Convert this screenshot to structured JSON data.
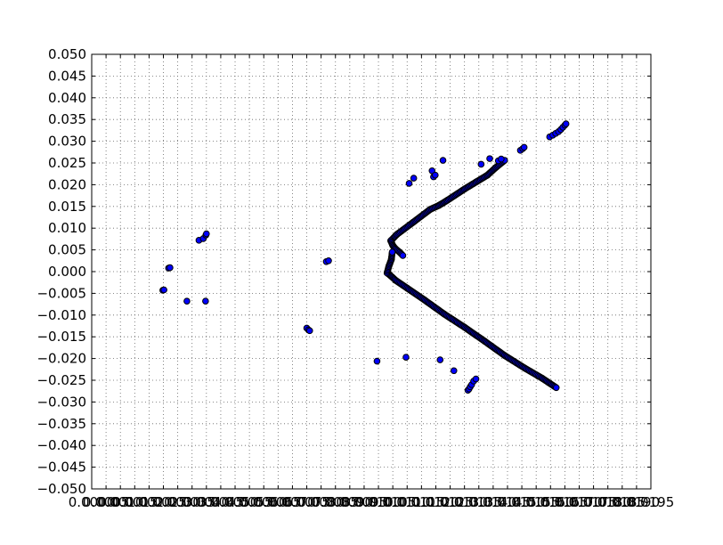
{
  "chart_data": {
    "type": "scatter",
    "title": "",
    "xlabel": "",
    "ylabel": "",
    "xlim": [
      0,
      0.0195
    ],
    "ylim": [
      -0.05,
      0.05
    ],
    "grid": true,
    "xticks": [
      0.0,
      0.0005,
      0.001,
      0.0015,
      0.002,
      0.0025,
      0.003,
      0.0035,
      0.004,
      0.0045,
      0.005,
      0.0055,
      0.006,
      0.0065,
      0.007,
      0.0075,
      0.008,
      0.0085,
      0.009,
      0.0095,
      0.01,
      0.0105,
      0.011,
      0.0115,
      0.012,
      0.0125,
      0.013,
      0.0135,
      0.014,
      0.0145,
      0.015,
      0.0155,
      0.016,
      0.0165,
      0.017,
      0.0175,
      0.018,
      0.0185,
      0.019,
      0.0195
    ],
    "xtick_labels": [
      "0.0000",
      "0.0005",
      "0.0010",
      "0.0015",
      "0.0020",
      "0.0025",
      "0.0030",
      "0.0035",
      "0.0040",
      "0.0045",
      "0.0050",
      "0.0055",
      "0.0060",
      "0.0065",
      "0.0070",
      "0.0075",
      "0.0080",
      "0.0085",
      "0.0090",
      "0.0095",
      "0.0100",
      "0.0105",
      "0.0110",
      "0.0115",
      "0.0120",
      "0.0125",
      "0.0130",
      "0.0135",
      "0.0140",
      "0.0145",
      "0.0150",
      "0.0155",
      "0.0160",
      "0.0165",
      "0.0170",
      "0.0175",
      "0.0180",
      "0.0185",
      "0.0190",
      "0.0195"
    ],
    "yticks": [
      -0.05,
      -0.045,
      -0.04,
      -0.035,
      -0.03,
      -0.025,
      -0.02,
      -0.015,
      -0.01,
      -0.005,
      0.0,
      0.005,
      0.01,
      0.015,
      0.02,
      0.025,
      0.03,
      0.035,
      0.04,
      0.045,
      0.05
    ],
    "ytick_labels": [
      "−0.050",
      "−0.045",
      "−0.040",
      "−0.035",
      "−0.030",
      "−0.025",
      "−0.020",
      "−0.015",
      "−0.010",
      "−0.005",
      "0.000",
      "0.005",
      "0.010",
      "0.015",
      "0.020",
      "0.025",
      "0.030",
      "0.035",
      "0.040",
      "0.045",
      "0.050"
    ],
    "colors": {
      "marker_fill": "#0000ff",
      "marker_edge": "#000000",
      "grid": "#666666",
      "axes": "#000000"
    },
    "series": [
      {
        "points": [
          [
            0.00248,
            -0.0043
          ],
          [
            0.00252,
            -0.0042
          ],
          [
            0.00268,
            0.0008
          ],
          [
            0.00273,
            0.0009
          ],
          [
            0.00332,
            -0.0068
          ],
          [
            0.00374,
            0.0072
          ],
          [
            0.00389,
            0.0076
          ],
          [
            0.00398,
            0.0084
          ],
          [
            0.004,
            0.0087
          ],
          [
            0.00397,
            -0.0068
          ],
          [
            0.0075,
            -0.013
          ],
          [
            0.00756,
            -0.0134
          ],
          [
            0.0076,
            -0.0136
          ],
          [
            0.00818,
            0.0023
          ],
          [
            0.00826,
            0.0025
          ],
          [
            0.00995,
            -0.0206
          ],
          [
            0.01096,
            -0.0197
          ],
          [
            0.01107,
            0.0203
          ],
          [
            0.01123,
            0.0215
          ],
          [
            0.01187,
            0.0232
          ],
          [
            0.01192,
            0.0218
          ],
          [
            0.01198,
            0.0222
          ],
          [
            0.01215,
            -0.0203
          ],
          [
            0.01225,
            0.0256
          ],
          [
            0.01263,
            -0.0228
          ],
          [
            0.01312,
            -0.0273
          ],
          [
            0.01316,
            -0.027
          ],
          [
            0.0132,
            -0.0265
          ],
          [
            0.01325,
            -0.026
          ],
          [
            0.01332,
            -0.0252
          ],
          [
            0.0134,
            -0.0247
          ],
          [
            0.01358,
            0.0247
          ],
          [
            0.01388,
            0.026
          ],
          [
            0.01418,
            0.0255
          ],
          [
            0.01428,
            0.0259
          ],
          [
            0.01495,
            0.0279
          ],
          [
            0.01503,
            0.0283
          ],
          [
            0.01508,
            0.0286
          ],
          [
            0.01597,
            0.031
          ],
          [
            0.01608,
            0.0314
          ],
          [
            0.01618,
            0.0318
          ],
          [
            0.01628,
            0.0322
          ],
          [
            0.01636,
            0.0327
          ],
          [
            0.01643,
            0.0332
          ],
          [
            0.0165,
            0.0337
          ],
          [
            0.01654,
            0.034
          ]
        ],
        "polylines": [
          [
            [
              0.01043,
              0.0071
            ],
            [
              0.01065,
              0.0086
            ],
            [
              0.0112,
              0.0113
            ],
            [
              0.0118,
              0.0143
            ],
            [
              0.0121,
              0.0152
            ],
            [
              0.0124,
              0.0164
            ],
            [
              0.013,
              0.019
            ],
            [
              0.0134,
              0.0206
            ],
            [
              0.0138,
              0.0222
            ],
            [
              0.0141,
              0.024
            ],
            [
              0.0144,
              0.0256
            ]
          ],
          [
            [
              0.01043,
              0.0071
            ],
            [
              0.0105,
              0.006
            ],
            [
              0.0106,
              0.0052
            ],
            [
              0.01075,
              0.0044
            ],
            [
              0.01085,
              0.0037
            ]
          ],
          [
            [
              0.0104,
              -0.0008
            ],
            [
              0.0106,
              -0.002
            ],
            [
              0.011,
              -0.0038
            ],
            [
              0.0116,
              -0.0065
            ],
            [
              0.0123,
              -0.0098
            ],
            [
              0.013,
              -0.0128
            ],
            [
              0.0137,
              -0.016
            ],
            [
              0.0144,
              -0.0193
            ],
            [
              0.0151,
              -0.0222
            ],
            [
              0.0157,
              -0.0245
            ],
            [
              0.0162,
              -0.0267
            ]
          ],
          [
            [
              0.0104,
              -0.0008
            ],
            [
              0.0103,
              -0.0003
            ],
            [
              0.01036,
              0.0012
            ],
            [
              0.01045,
              0.0028
            ],
            [
              0.01048,
              0.0045
            ]
          ]
        ]
      }
    ]
  }
}
